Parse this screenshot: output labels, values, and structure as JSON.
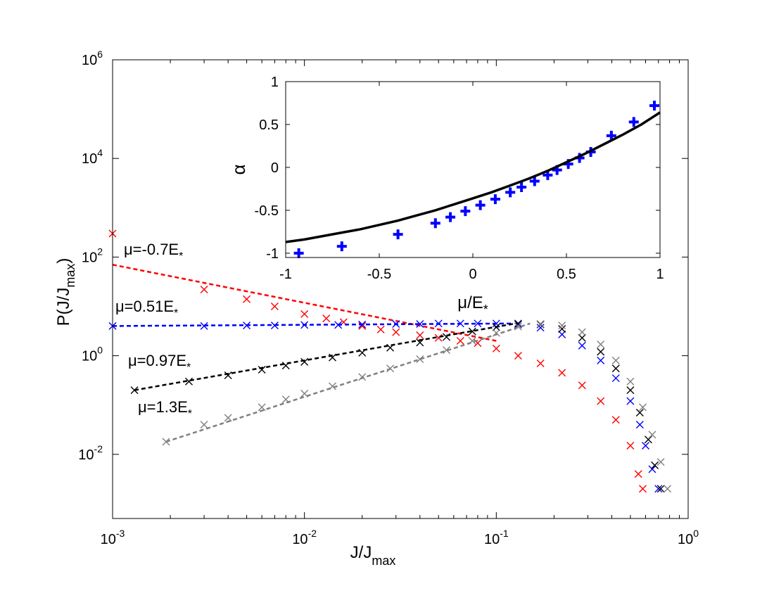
{
  "chart_data": [
    {
      "type": "scatter",
      "role": "main",
      "title": "",
      "xlabel": "J/J",
      "xlabel_sub": "max",
      "ylabel": "P(J/J",
      "ylabel_sub": "max",
      "ylabel_close": ")",
      "xscale": "log",
      "yscale": "log",
      "xlim": [
        0.001,
        1
      ],
      "ylim": [
        0.0005,
        1000000
      ],
      "grid": false,
      "x_ticks": [
        {
          "value": 0.001,
          "base": "10",
          "exp": "-3"
        },
        {
          "value": 0.01,
          "base": "10",
          "exp": "-2"
        },
        {
          "value": 0.1,
          "base": "10",
          "exp": "-1"
        },
        {
          "value": 1,
          "base": "10",
          "exp": "0"
        }
      ],
      "y_ticks": [
        {
          "value": 0.01,
          "base": "10",
          "exp": "-2"
        },
        {
          "value": 1,
          "base": "10",
          "exp": "0"
        },
        {
          "value": 100,
          "base": "10",
          "exp": "2"
        },
        {
          "value": 10000,
          "base": "10",
          "exp": "4"
        },
        {
          "value": 1000000,
          "base": "10",
          "exp": "6"
        }
      ],
      "series": [
        {
          "name": "μ=-0.7E*",
          "label_text": "μ=-0.7E",
          "label_sub": "*",
          "color": "#ff0000",
          "fit_x": [
            0.001,
            0.1
          ],
          "fit_y": [
            70,
            2.0
          ],
          "x": [
            0.001,
            0.003,
            0.005,
            0.007,
            0.01,
            0.013,
            0.016,
            0.02,
            0.025,
            0.03,
            0.04,
            0.05,
            0.065,
            0.08,
            0.1,
            0.13,
            0.17,
            0.22,
            0.28,
            0.35,
            0.42,
            0.5,
            0.55,
            0.58
          ],
          "y": [
            300,
            22,
            14,
            10,
            7,
            5.7,
            4.8,
            4.0,
            3.4,
            3.0,
            2.6,
            2.3,
            2.0,
            1.8,
            1.4,
            1.0,
            0.7,
            0.45,
            0.25,
            0.12,
            0.05,
            0.015,
            0.004,
            0.002
          ]
        },
        {
          "name": "μ=0.51E*",
          "label_text": "μ=0.51E",
          "label_sub": "*",
          "color": "#0000ff",
          "fit_x": [
            0.001,
            0.12
          ],
          "fit_y": [
            4.0,
            4.5
          ],
          "x": [
            0.001,
            0.003,
            0.005,
            0.007,
            0.01,
            0.015,
            0.02,
            0.03,
            0.04,
            0.05,
            0.065,
            0.08,
            0.1,
            0.13,
            0.17,
            0.22,
            0.28,
            0.35,
            0.42,
            0.5,
            0.56,
            0.6,
            0.65,
            0.7
          ],
          "y": [
            4.0,
            4.0,
            4.1,
            4.1,
            4.2,
            4.2,
            4.3,
            4.4,
            4.4,
            4.5,
            4.5,
            4.5,
            4.5,
            4.3,
            3.7,
            2.7,
            1.6,
            0.8,
            0.35,
            0.12,
            0.04,
            0.015,
            0.005,
            0.002
          ]
        },
        {
          "name": "μ=0.97E*",
          "label_text": "μ=0.97E",
          "label_sub": "*",
          "color": "#000000",
          "fit_x": [
            0.0013,
            0.13
          ],
          "fit_y": [
            0.2,
            4.6
          ],
          "x": [
            0.0013,
            0.0025,
            0.004,
            0.006,
            0.008,
            0.01,
            0.014,
            0.02,
            0.028,
            0.04,
            0.055,
            0.075,
            0.1,
            0.13,
            0.17,
            0.22,
            0.28,
            0.35,
            0.42,
            0.5,
            0.56,
            0.62,
            0.67,
            0.72
          ],
          "y": [
            0.2,
            0.3,
            0.4,
            0.52,
            0.63,
            0.75,
            0.92,
            1.15,
            1.45,
            1.85,
            2.4,
            3.1,
            3.8,
            4.5,
            4.3,
            3.5,
            2.3,
            1.2,
            0.55,
            0.2,
            0.07,
            0.02,
            0.006,
            0.002
          ]
        },
        {
          "name": "μ=1.3E*",
          "label_text": "μ=1.3E",
          "label_sub": "*",
          "color": "#808080",
          "fit_x": [
            0.0019,
            0.15
          ],
          "fit_y": [
            0.018,
            4.5
          ],
          "x": [
            0.0019,
            0.003,
            0.004,
            0.006,
            0.008,
            0.01,
            0.014,
            0.02,
            0.028,
            0.04,
            0.055,
            0.075,
            0.1,
            0.13,
            0.17,
            0.22,
            0.28,
            0.35,
            0.42,
            0.5,
            0.58,
            0.65,
            0.72,
            0.78
          ],
          "y": [
            0.018,
            0.04,
            0.055,
            0.09,
            0.13,
            0.17,
            0.24,
            0.37,
            0.55,
            0.85,
            1.3,
            2.0,
            2.9,
            3.9,
            4.4,
            4.1,
            3.0,
            1.7,
            0.8,
            0.3,
            0.09,
            0.025,
            0.007,
            0.002
          ]
        }
      ]
    },
    {
      "type": "scatter",
      "role": "inset",
      "title": "",
      "xlabel": "μ/E",
      "xlabel_sub": "*",
      "ylabel": "α",
      "xlim": [
        -1,
        1
      ],
      "ylim": [
        -1.05,
        1
      ],
      "grid": false,
      "x_ticks": [
        -1,
        -0.5,
        0,
        0.5,
        1
      ],
      "y_ticks": [
        -1,
        -0.5,
        0,
        0.5,
        1
      ],
      "series": [
        {
          "name": "data",
          "marker": "plus",
          "color": "#0000ff",
          "x": [
            -0.93,
            -0.7,
            -0.4,
            -0.2,
            -0.12,
            -0.04,
            0.04,
            0.12,
            0.2,
            0.26,
            0.33,
            0.4,
            0.45,
            0.51,
            0.57,
            0.63,
            0.74,
            0.86,
            0.97
          ],
          "y": [
            -1.0,
            -0.92,
            -0.78,
            -0.65,
            -0.58,
            -0.51,
            -0.44,
            -0.37,
            -0.29,
            -0.23,
            -0.16,
            -0.09,
            -0.03,
            0.04,
            0.11,
            0.18,
            0.37,
            0.53,
            0.72
          ]
        },
        {
          "name": "fit",
          "marker": "line",
          "color": "#000000",
          "x": [
            -1,
            -0.9,
            -0.8,
            -0.7,
            -0.6,
            -0.5,
            -0.4,
            -0.3,
            -0.2,
            -0.1,
            0,
            0.1,
            0.2,
            0.3,
            0.4,
            0.5,
            0.6,
            0.7,
            0.8,
            0.9,
            1
          ],
          "y": [
            -0.87,
            -0.84,
            -0.8,
            -0.76,
            -0.72,
            -0.67,
            -0.62,
            -0.56,
            -0.5,
            -0.43,
            -0.36,
            -0.29,
            -0.21,
            -0.13,
            -0.04,
            0.06,
            0.16,
            0.27,
            0.38,
            0.5,
            0.64
          ]
        }
      ]
    }
  ]
}
